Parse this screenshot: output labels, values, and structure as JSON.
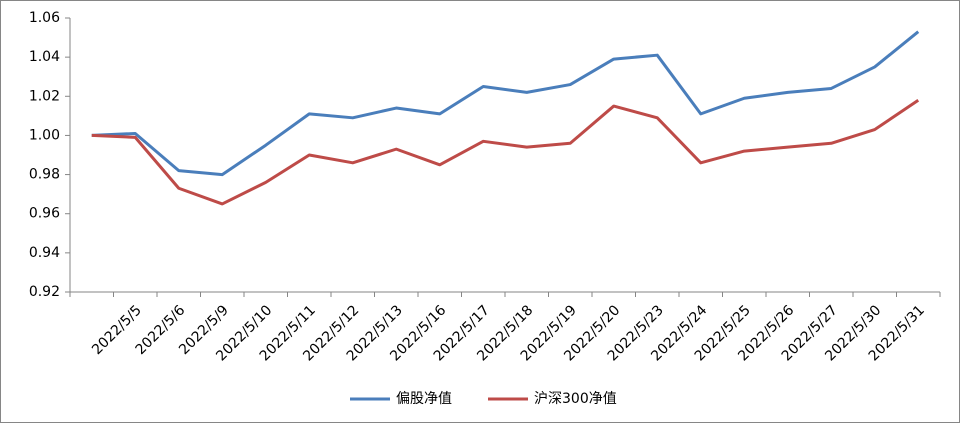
{
  "chart_data": {
    "type": "line",
    "categories": [
      null,
      "2022/5/5",
      "2022/5/6",
      "2022/5/9",
      "2022/5/10",
      "2022/5/11",
      "2022/5/12",
      "2022/5/13",
      "2022/5/16",
      "2022/5/17",
      "2022/5/18",
      "2022/5/19",
      "2022/5/20",
      "2022/5/23",
      "2022/5/24",
      "2022/5/25",
      "2022/5/26",
      "2022/5/27",
      "2022/5/30",
      "2022/5/31"
    ],
    "series": [
      {
        "name": "偏股净值",
        "color": "#4a7ebb",
        "values": [
          1.0,
          1.001,
          0.982,
          0.98,
          0.995,
          1.011,
          1.009,
          1.014,
          1.011,
          1.025,
          1.022,
          1.026,
          1.039,
          1.041,
          1.011,
          1.019,
          1.022,
          1.024,
          1.035,
          1.053
        ]
      },
      {
        "name": "沪深300净值",
        "color": "#be4b48",
        "values": [
          1.0,
          0.999,
          0.973,
          0.965,
          0.976,
          0.99,
          0.986,
          0.993,
          0.985,
          0.997,
          0.994,
          0.996,
          1.015,
          1.009,
          0.986,
          0.992,
          0.994,
          0.996,
          1.003,
          1.018
        ]
      }
    ],
    "ylim": [
      0.92,
      1.06
    ],
    "yticks": [
      0.92,
      0.94,
      0.96,
      0.98,
      {
        "value": 1,
        "label": "1.00"
      },
      1.02,
      1.04,
      1.06
    ],
    "grid": false,
    "legend": "bottom"
  }
}
